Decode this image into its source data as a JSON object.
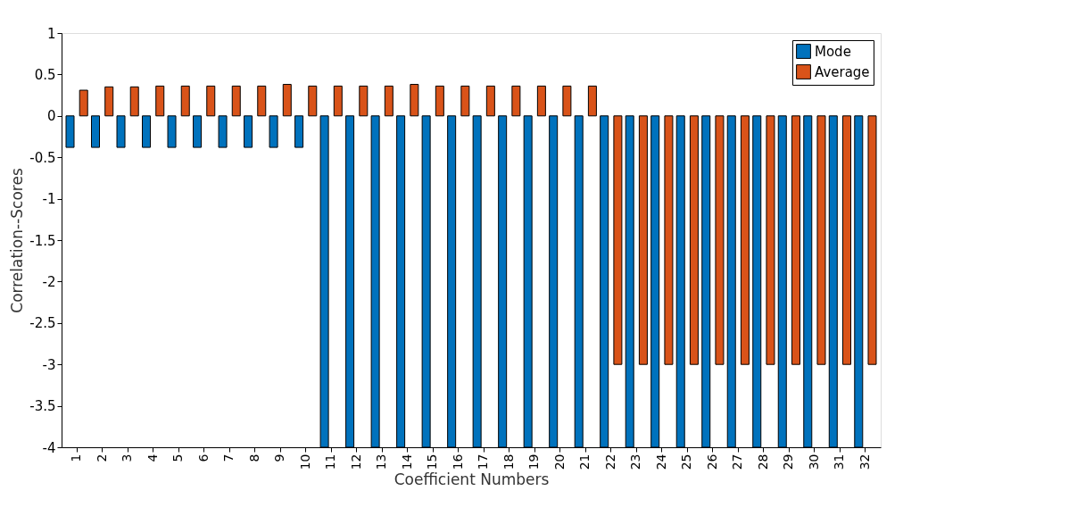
{
  "chart_data": {
    "type": "bar",
    "xlabel": "Coefficient Numbers",
    "ylabel": "Correlation--Scores",
    "categories": [
      "1",
      "2",
      "3",
      "4",
      "5",
      "6",
      "7",
      "8",
      "9",
      "10",
      "11",
      "12",
      "13",
      "14",
      "15",
      "16",
      "17",
      "18",
      "19",
      "20",
      "21",
      "22",
      "23",
      "24",
      "25",
      "26",
      "27",
      "28",
      "29",
      "30",
      "31",
      "32"
    ],
    "series": [
      {
        "name": "Mode",
        "color": "#0072bd",
        "values": [
          -0.38,
          -0.38,
          -0.38,
          -0.38,
          -0.38,
          -0.38,
          -0.38,
          -0.38,
          -0.38,
          -0.38,
          -4,
          -4,
          -4,
          -4,
          -4,
          -4,
          -4,
          -4,
          -4,
          -4,
          -4,
          -4,
          -4,
          -4,
          -4,
          -4,
          -4,
          -4,
          -4,
          -4,
          -4,
          -4
        ]
      },
      {
        "name": "Average",
        "color": "#d95319",
        "values": [
          0.31,
          0.35,
          0.35,
          0.36,
          0.36,
          0.36,
          0.36,
          0.36,
          0.38,
          0.36,
          0.36,
          0.36,
          0.36,
          0.38,
          0.36,
          0.36,
          0.36,
          0.36,
          0.36,
          0.36,
          0.36,
          -3,
          -3,
          -3,
          -3,
          -3,
          -3,
          -3,
          -3,
          -3,
          -3,
          -3
        ]
      }
    ],
    "ylim": [
      -4,
      1
    ],
    "yticks": [
      -4,
      -3.5,
      -3,
      -2.5,
      -2,
      -1.5,
      -1,
      -0.5,
      0,
      0.5,
      1
    ],
    "grid": false,
    "legend": "top right"
  }
}
